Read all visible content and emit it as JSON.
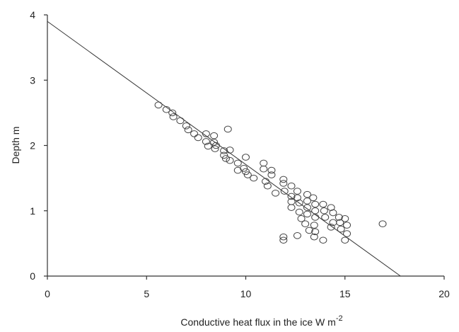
{
  "chart_data": {
    "type": "scatter",
    "xlabel": "Conductive heat flux in the ice  W m",
    "xlabel_superscript": "-2",
    "ylabel": "Depth  m",
    "xlim": [
      0,
      20
    ],
    "ylim": [
      0,
      4
    ],
    "xticks": [
      "0",
      "5",
      "10",
      "15",
      "20"
    ],
    "yticks": [
      "0",
      "1",
      "2",
      "3",
      "4"
    ],
    "grid": false,
    "fit_line": {
      "x": [
        0,
        17.8
      ],
      "y": [
        3.9,
        0
      ]
    },
    "series": [
      {
        "marker": "open-circle",
        "points": [
          [
            5.6,
            2.62
          ],
          [
            6.0,
            2.55
          ],
          [
            6.3,
            2.5
          ],
          [
            6.35,
            2.44
          ],
          [
            6.7,
            2.38
          ],
          [
            7.0,
            2.3
          ],
          [
            7.1,
            2.24
          ],
          [
            7.4,
            2.18
          ],
          [
            7.6,
            2.12
          ],
          [
            8.0,
            2.18
          ],
          [
            8.0,
            2.06
          ],
          [
            8.1,
            1.99
          ],
          [
            8.4,
            2.15
          ],
          [
            8.4,
            2.05
          ],
          [
            8.5,
            2.0
          ],
          [
            8.45,
            1.95
          ],
          [
            8.9,
            1.92
          ],
          [
            8.9,
            1.85
          ],
          [
            9.0,
            1.8
          ],
          [
            9.1,
            2.25
          ],
          [
            9.2,
            1.93
          ],
          [
            9.2,
            1.77
          ],
          [
            9.6,
            1.73
          ],
          [
            9.6,
            1.62
          ],
          [
            9.9,
            1.65
          ],
          [
            10.0,
            1.82
          ],
          [
            10.0,
            1.6
          ],
          [
            10.1,
            1.55
          ],
          [
            10.4,
            1.5
          ],
          [
            10.9,
            1.73
          ],
          [
            10.9,
            1.64
          ],
          [
            11.0,
            1.45
          ],
          [
            11.1,
            1.38
          ],
          [
            11.3,
            1.62
          ],
          [
            11.3,
            1.55
          ],
          [
            11.5,
            1.27
          ],
          [
            11.9,
            1.48
          ],
          [
            11.9,
            1.42
          ],
          [
            11.95,
            1.3
          ],
          [
            11.9,
            0.6
          ],
          [
            11.9,
            0.55
          ],
          [
            12.3,
            1.38
          ],
          [
            12.3,
            1.22
          ],
          [
            12.3,
            1.14
          ],
          [
            12.3,
            1.05
          ],
          [
            12.6,
            1.3
          ],
          [
            12.6,
            1.2
          ],
          [
            12.7,
            1.12
          ],
          [
            12.7,
            0.98
          ],
          [
            12.8,
            0.88
          ],
          [
            12.6,
            0.62
          ],
          [
            13.1,
            1.25
          ],
          [
            13.1,
            1.15
          ],
          [
            13.1,
            1.05
          ],
          [
            13.1,
            0.95
          ],
          [
            13.2,
            0.7
          ],
          [
            13.0,
            0.8
          ],
          [
            13.4,
            1.2
          ],
          [
            13.5,
            1.1
          ],
          [
            13.5,
            1.0
          ],
          [
            13.5,
            0.9
          ],
          [
            13.45,
            0.78
          ],
          [
            13.5,
            0.68
          ],
          [
            13.45,
            0.6
          ],
          [
            13.9,
            1.1
          ],
          [
            13.95,
            1.0
          ],
          [
            14.0,
            0.9
          ],
          [
            13.9,
            0.55
          ],
          [
            14.3,
            1.05
          ],
          [
            14.4,
            0.97
          ],
          [
            14.4,
            0.82
          ],
          [
            14.3,
            0.75
          ],
          [
            14.7,
            0.9
          ],
          [
            14.75,
            0.82
          ],
          [
            14.8,
            0.72
          ],
          [
            15.0,
            0.88
          ],
          [
            15.1,
            0.78
          ],
          [
            15.1,
            0.65
          ],
          [
            15.0,
            0.55
          ],
          [
            16.9,
            0.8
          ]
        ]
      }
    ]
  }
}
